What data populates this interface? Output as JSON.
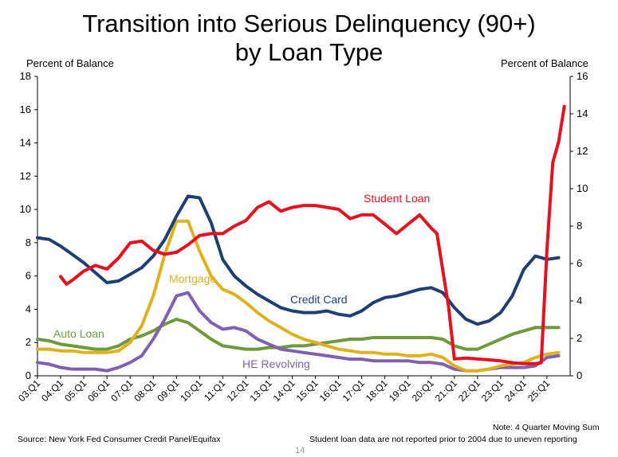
{
  "chart_data": {
    "type": "line",
    "title": "Transition into Serious Delinquency (90+)",
    "subtitle": "by Loan Type",
    "ylabel_left": "Percent of Balance",
    "ylabel_right": "Percent of Balance",
    "ylim_left": [
      0,
      18
    ],
    "ylim_right": [
      0,
      16
    ],
    "yticks_left": [
      "0",
      "2",
      "4",
      "6",
      "8",
      "10",
      "12",
      "14",
      "16",
      "18"
    ],
    "yticks_right": [
      "0",
      "2",
      "4",
      "6",
      "8",
      "10",
      "12",
      "14",
      "16"
    ],
    "x_tick_labels": [
      "03:Q1",
      "04:Q1",
      "05:Q1",
      "06:Q1",
      "07:Q1",
      "08:Q1",
      "09:Q1",
      "10:Q1",
      "11:Q1",
      "12:Q1",
      "13:Q1",
      "14:Q1",
      "15:Q1",
      "16:Q1",
      "17:Q1",
      "18:Q1",
      "19:Q1",
      "20:Q1",
      "21:Q1",
      "22:Q1",
      "23:Q1",
      "24:Q1",
      "25:Q1"
    ],
    "grid": false,
    "series": [
      {
        "name": "Credit Card",
        "color": "#1F3F74",
        "axis": "left",
        "x": [
          "2003.0",
          "2003.5",
          "2004.0",
          "2004.5",
          "2005.0",
          "2005.5",
          "2006.0",
          "2006.5",
          "2007.0",
          "2007.5",
          "2008.0",
          "2008.5",
          "2009.0",
          "2009.5",
          "2010.0",
          "2010.5",
          "2011.0",
          "2011.5",
          "2012.0",
          "2012.5",
          "2013.0",
          "2013.5",
          "2014.0",
          "2014.5",
          "2015.0",
          "2015.5",
          "2016.0",
          "2016.5",
          "2017.0",
          "2017.5",
          "2018.0",
          "2018.5",
          "2019.0",
          "2019.5",
          "2020.0",
          "2020.5",
          "2021.0",
          "2021.5",
          "2022.0",
          "2022.5",
          "2023.0",
          "2023.5",
          "2024.0",
          "2024.5",
          "2025.0",
          "2025.5"
        ],
        "values": [
          8.3,
          8.2,
          7.8,
          7.3,
          6.8,
          6.2,
          5.6,
          5.7,
          6.1,
          6.5,
          7.2,
          8.2,
          9.6,
          10.8,
          10.7,
          9.2,
          7.0,
          6.0,
          5.4,
          4.9,
          4.5,
          4.1,
          3.9,
          3.8,
          3.8,
          3.9,
          3.7,
          3.6,
          3.9,
          4.4,
          4.7,
          4.8,
          5.0,
          5.2,
          5.3,
          5.0,
          4.1,
          3.4,
          3.1,
          3.3,
          3.8,
          4.8,
          6.4,
          7.2,
          7.0,
          7.1
        ]
      },
      {
        "name": "Mortgage",
        "color": "#DDB21E",
        "axis": "left",
        "x": [
          "2003.0",
          "2003.5",
          "2004.0",
          "2004.5",
          "2005.0",
          "2005.5",
          "2006.0",
          "2006.5",
          "2007.0",
          "2007.5",
          "2008.0",
          "2008.5",
          "2009.0",
          "2009.5",
          "2010.0",
          "2010.5",
          "2011.0",
          "2011.5",
          "2012.0",
          "2012.5",
          "2013.0",
          "2013.5",
          "2014.0",
          "2014.5",
          "2015.0",
          "2015.5",
          "2016.0",
          "2016.5",
          "2017.0",
          "2017.5",
          "2018.0",
          "2018.5",
          "2019.0",
          "2019.5",
          "2020.0",
          "2020.5",
          "2021.0",
          "2021.5",
          "2022.0",
          "2022.5",
          "2023.0",
          "2023.5",
          "2024.0",
          "2024.5",
          "2025.0",
          "2025.5"
        ],
        "values": [
          1.6,
          1.6,
          1.5,
          1.5,
          1.4,
          1.4,
          1.4,
          1.5,
          2.0,
          3.0,
          4.8,
          7.3,
          9.3,
          9.3,
          7.5,
          6.0,
          5.2,
          4.9,
          4.4,
          3.8,
          3.3,
          2.9,
          2.5,
          2.2,
          2.0,
          1.8,
          1.6,
          1.5,
          1.4,
          1.4,
          1.3,
          1.3,
          1.2,
          1.2,
          1.3,
          1.1,
          0.6,
          0.3,
          0.3,
          0.4,
          0.6,
          0.7,
          0.8,
          1.1,
          1.3,
          1.4
        ]
      },
      {
        "name": "Auto Loan",
        "color": "#6E9A3C",
        "axis": "left",
        "x": [
          "2003.0",
          "2003.5",
          "2004.0",
          "2004.5",
          "2005.0",
          "2005.5",
          "2006.0",
          "2006.5",
          "2007.0",
          "2007.5",
          "2008.0",
          "2008.5",
          "2009.0",
          "2009.5",
          "2010.0",
          "2010.5",
          "2011.0",
          "2011.5",
          "2012.0",
          "2012.5",
          "2013.0",
          "2013.5",
          "2014.0",
          "2014.5",
          "2015.0",
          "2015.5",
          "2016.0",
          "2016.5",
          "2017.0",
          "2017.5",
          "2018.0",
          "2018.5",
          "2019.0",
          "2019.5",
          "2020.0",
          "2020.5",
          "2021.0",
          "2021.5",
          "2022.0",
          "2022.5",
          "2023.0",
          "2023.5",
          "2024.0",
          "2024.5",
          "2025.0",
          "2025.5"
        ],
        "values": [
          2.2,
          2.1,
          1.9,
          1.8,
          1.7,
          1.6,
          1.6,
          1.8,
          2.2,
          2.4,
          2.7,
          3.1,
          3.4,
          3.2,
          2.7,
          2.2,
          1.8,
          1.7,
          1.6,
          1.6,
          1.7,
          1.7,
          1.8,
          1.8,
          1.9,
          2.0,
          2.1,
          2.2,
          2.2,
          2.3,
          2.3,
          2.3,
          2.3,
          2.3,
          2.3,
          2.2,
          1.8,
          1.6,
          1.6,
          1.9,
          2.2,
          2.5,
          2.7,
          2.9,
          2.9,
          2.9
        ]
      },
      {
        "name": "HE Revolving",
        "color": "#8060B0",
        "axis": "left",
        "x": [
          "2003.0",
          "2003.5",
          "2004.0",
          "2004.5",
          "2005.0",
          "2005.5",
          "2006.0",
          "2006.5",
          "2007.0",
          "2007.5",
          "2008.0",
          "2008.5",
          "2009.0",
          "2009.5",
          "2010.0",
          "2010.5",
          "2011.0",
          "2011.5",
          "2012.0",
          "2012.5",
          "2013.0",
          "2013.5",
          "2014.0",
          "2014.5",
          "2015.0",
          "2015.5",
          "2016.0",
          "2016.5",
          "2017.0",
          "2017.5",
          "2018.0",
          "2018.5",
          "2019.0",
          "2019.5",
          "2020.0",
          "2020.5",
          "2021.0",
          "2021.5",
          "2022.0",
          "2022.5",
          "2023.0",
          "2023.5",
          "2024.0",
          "2024.5",
          "2025.0",
          "2025.5"
        ],
        "values": [
          0.8,
          0.7,
          0.5,
          0.4,
          0.4,
          0.4,
          0.3,
          0.5,
          0.8,
          1.2,
          2.2,
          3.4,
          4.8,
          5.0,
          3.9,
          3.2,
          2.8,
          2.9,
          2.7,
          2.2,
          1.9,
          1.6,
          1.5,
          1.4,
          1.3,
          1.2,
          1.1,
          1.0,
          1.0,
          0.9,
          0.9,
          0.9,
          0.9,
          0.8,
          0.8,
          0.7,
          0.4,
          0.3,
          0.3,
          0.4,
          0.5,
          0.5,
          0.5,
          0.6,
          1.1,
          1.2
        ]
      },
      {
        "name": "Student Loan",
        "color": "#E8101E",
        "axis": "right",
        "x": [
          "2004.0",
          "2004.25",
          "2004.5",
          "2005.0",
          "2005.5",
          "2006.0",
          "2006.5",
          "2007.0",
          "2007.5",
          "2008.0",
          "2008.5",
          "2009.0",
          "2009.5",
          "2010.0",
          "2010.5",
          "2011.0",
          "2011.5",
          "2012.0",
          "2012.5",
          "2013.0",
          "2013.5",
          "2014.0",
          "2014.5",
          "2015.0",
          "2015.5",
          "2016.0",
          "2016.5",
          "2017.0",
          "2017.5",
          "2018.0",
          "2018.5",
          "2019.0",
          "2019.5",
          "2020.0",
          "2020.25",
          "2020.75",
          "2021.0",
          "2021.5",
          "2022.0",
          "2022.5",
          "2023.0",
          "2023.5",
          "2024.0",
          "2024.5",
          "2024.75",
          "2025.0",
          "2025.25",
          "2025.5",
          "2025.75"
        ],
        "values": [
          5.3,
          4.9,
          5.1,
          5.6,
          5.9,
          5.7,
          6.3,
          7.1,
          7.2,
          6.7,
          6.5,
          6.6,
          7.0,
          7.5,
          7.6,
          7.6,
          8.0,
          8.3,
          9.0,
          9.3,
          8.8,
          9.0,
          9.1,
          9.1,
          9.0,
          8.9,
          8.4,
          8.6,
          8.6,
          8.1,
          7.6,
          8.1,
          8.6,
          7.9,
          7.6,
          3.7,
          0.9,
          0.95,
          0.9,
          0.85,
          0.8,
          0.7,
          0.65,
          0.65,
          0.7,
          6.8,
          11.4,
          12.5,
          14.4
        ]
      }
    ],
    "series_labels": {
      "credit_card": "Credit Card",
      "mortgage": "Mortgage",
      "auto_loan": "Auto Loan",
      "he_revolving": "HE Revolving",
      "student_loan": "Student Loan"
    }
  },
  "footer": {
    "source": "Source: New York Fed Consumer Credit Panel/Equifax",
    "note": "Note: 4 Quarter Moving Sum",
    "student_note": "Student loan data are not reported prior to 2004 due to uneven reporting",
    "page_number": "14"
  }
}
